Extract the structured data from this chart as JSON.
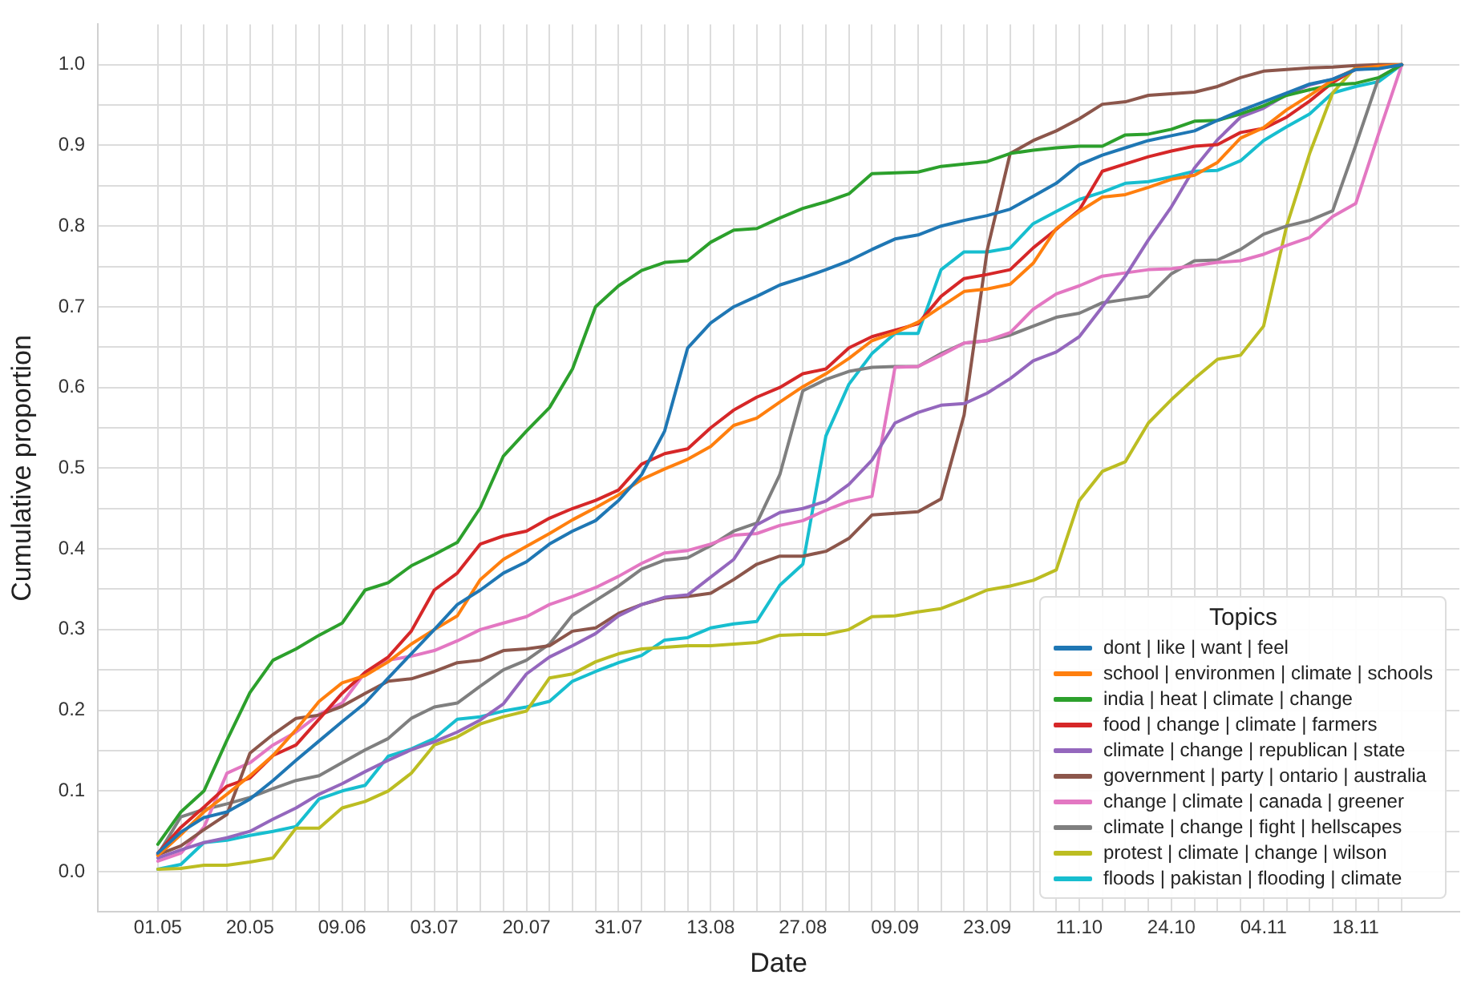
{
  "chart_data": {
    "type": "line",
    "xlabel": "Date",
    "ylabel": "Cumulative proportion",
    "legend_title": "Topics",
    "legend": "bottom right",
    "grid": true,
    "categories": [
      "01.05",
      null,
      null,
      null,
      "20.05",
      null,
      null,
      null,
      "09.06",
      null,
      null,
      null,
      "03.07",
      null,
      null,
      null,
      "20.07",
      null,
      null,
      null,
      "31.07",
      null,
      null,
      null,
      "13.08",
      null,
      null,
      null,
      "27.08",
      null,
      null,
      null,
      "09.09",
      null,
      null,
      null,
      "23.09",
      null,
      null,
      null,
      "11.10",
      null,
      null,
      null,
      "24.10",
      null,
      null,
      null,
      "04.11",
      null,
      null,
      null,
      "18.11",
      null,
      null
    ],
    "ylim": [
      -0.05,
      1.05
    ],
    "yticks": [
      {
        "value": 0,
        "label": "0.0"
      },
      {
        "value": 0.05,
        "label": null
      },
      {
        "value": 0.1,
        "label": "0.1"
      },
      {
        "value": 0.15,
        "label": null
      },
      {
        "value": 0.2,
        "label": "0.2"
      },
      {
        "value": 0.25,
        "label": null
      },
      {
        "value": 0.3,
        "label": "0.3"
      },
      {
        "value": 0.35,
        "label": null
      },
      {
        "value": 0.4,
        "label": "0.4"
      },
      {
        "value": 0.45,
        "label": null
      },
      {
        "value": 0.5,
        "label": "0.5"
      },
      {
        "value": 0.55,
        "label": null
      },
      {
        "value": 0.6,
        "label": "0.6"
      },
      {
        "value": 0.65,
        "label": null
      },
      {
        "value": 0.7,
        "label": "0.7"
      },
      {
        "value": 0.75,
        "label": null
      },
      {
        "value": 0.8,
        "label": "0.8"
      },
      {
        "value": 0.85,
        "label": null
      },
      {
        "value": 0.9,
        "label": "0.9"
      },
      {
        "value": 0.95,
        "label": null
      },
      {
        "value": 1,
        "label": "1.0"
      }
    ],
    "series": [
      {
        "name": "dont | like | want | feel",
        "color": "#1f77b4",
        "values": [
          0.023,
          0.049,
          0.067,
          0.074,
          0.09,
          0.113,
          0.138,
          0.162,
          0.186,
          0.209,
          0.24,
          0.27,
          0.3,
          0.331,
          0.349,
          0.37,
          0.384,
          0.406,
          0.422,
          0.435,
          0.46,
          0.492,
          0.546,
          0.649,
          0.68,
          0.7,
          0.713,
          0.727,
          0.736,
          0.746,
          0.757,
          0.771,
          0.784,
          0.789,
          0.8,
          0.807,
          0.813,
          0.821,
          0.837,
          0.853,
          0.876,
          0.888,
          0.897,
          0.906,
          0.912,
          0.918,
          0.931,
          0.943,
          0.954,
          0.965,
          0.976,
          0.982,
          0.994,
          0.995,
          1.0
        ]
      },
      {
        "name": "school | environmen | climate | schools",
        "color": "#ff7f0e",
        "values": [
          0.02,
          0.046,
          0.074,
          0.096,
          0.119,
          0.144,
          0.176,
          0.211,
          0.234,
          0.243,
          0.26,
          0.282,
          0.3,
          0.317,
          0.362,
          0.387,
          0.403,
          0.419,
          0.436,
          0.451,
          0.467,
          0.486,
          0.499,
          0.511,
          0.527,
          0.553,
          0.562,
          0.582,
          0.601,
          0.617,
          0.636,
          0.658,
          0.668,
          0.681,
          0.7,
          0.719,
          0.722,
          0.728,
          0.754,
          0.797,
          0.818,
          0.836,
          0.839,
          0.848,
          0.858,
          0.863,
          0.879,
          0.909,
          0.922,
          0.944,
          0.962,
          0.981,
          0.995,
          0.998,
          1.0
        ]
      },
      {
        "name": "india | heat | climate | change",
        "color": "#2ca02c",
        "values": [
          0.034,
          0.074,
          0.1,
          0.163,
          0.222,
          0.262,
          0.276,
          0.293,
          0.308,
          0.349,
          0.358,
          0.379,
          0.393,
          0.408,
          0.451,
          0.515,
          0.546,
          0.575,
          0.623,
          0.7,
          0.726,
          0.745,
          0.755,
          0.757,
          0.78,
          0.795,
          0.797,
          0.81,
          0.822,
          0.83,
          0.84,
          0.865,
          0.866,
          0.867,
          0.874,
          0.877,
          0.88,
          0.89,
          0.894,
          0.897,
          0.899,
          0.899,
          0.913,
          0.914,
          0.92,
          0.93,
          0.931,
          0.939,
          0.949,
          0.962,
          0.969,
          0.975,
          0.977,
          0.984,
          1.0
        ]
      },
      {
        "name": "food | change | climate | farmers",
        "color": "#d62728",
        "values": [
          0.023,
          0.055,
          0.08,
          0.106,
          0.116,
          0.144,
          0.157,
          0.189,
          0.221,
          0.247,
          0.266,
          0.298,
          0.349,
          0.37,
          0.406,
          0.416,
          0.422,
          0.438,
          0.45,
          0.46,
          0.473,
          0.505,
          0.518,
          0.524,
          0.55,
          0.572,
          0.588,
          0.6,
          0.617,
          0.623,
          0.649,
          0.663,
          0.671,
          0.679,
          0.713,
          0.735,
          0.74,
          0.746,
          0.773,
          0.796,
          0.82,
          0.868,
          0.877,
          0.886,
          0.893,
          0.899,
          0.901,
          0.916,
          0.921,
          0.935,
          0.955,
          0.978,
          0.995,
          0.998,
          1.0
        ]
      },
      {
        "name": "climate | change | republican | state",
        "color": "#9467bd",
        "values": [
          0.017,
          0.027,
          0.036,
          0.042,
          0.05,
          0.065,
          0.079,
          0.096,
          0.109,
          0.124,
          0.138,
          0.151,
          0.161,
          0.173,
          0.188,
          0.208,
          0.245,
          0.266,
          0.28,
          0.295,
          0.317,
          0.331,
          0.34,
          0.343,
          0.365,
          0.387,
          0.43,
          0.445,
          0.45,
          0.459,
          0.48,
          0.51,
          0.556,
          0.569,
          0.578,
          0.58,
          0.593,
          0.611,
          0.633,
          0.644,
          0.663,
          0.7,
          0.738,
          0.783,
          0.824,
          0.872,
          0.907,
          0.935,
          0.946,
          0.963,
          0.975,
          0.982,
          0.994,
          0.996,
          1.0
        ]
      },
      {
        "name": "government | party | ontario | australia",
        "color": "#8c564b",
        "values": [
          0.021,
          0.032,
          0.052,
          0.071,
          0.147,
          0.17,
          0.19,
          0.194,
          0.205,
          0.221,
          0.236,
          0.239,
          0.248,
          0.259,
          0.262,
          0.274,
          0.276,
          0.28,
          0.298,
          0.302,
          0.32,
          0.331,
          0.339,
          0.341,
          0.345,
          0.362,
          0.381,
          0.391,
          0.391,
          0.397,
          0.413,
          0.442,
          0.444,
          0.446,
          0.462,
          0.566,
          0.77,
          0.89,
          0.906,
          0.918,
          0.933,
          0.951,
          0.954,
          0.962,
          0.964,
          0.966,
          0.973,
          0.984,
          0.992,
          0.994,
          0.996,
          0.997,
          0.999,
          1.0,
          1.0
        ]
      },
      {
        "name": "change | climate | canada | greener",
        "color": "#e377c2",
        "values": [
          0.013,
          0.023,
          0.055,
          0.122,
          0.135,
          0.157,
          0.173,
          0.195,
          0.209,
          0.247,
          0.262,
          0.267,
          0.274,
          0.286,
          0.3,
          0.308,
          0.316,
          0.331,
          0.341,
          0.352,
          0.366,
          0.382,
          0.395,
          0.398,
          0.406,
          0.417,
          0.419,
          0.429,
          0.435,
          0.448,
          0.459,
          0.465,
          0.625,
          0.626,
          0.64,
          0.655,
          0.658,
          0.668,
          0.697,
          0.716,
          0.726,
          0.738,
          0.742,
          0.746,
          0.747,
          0.751,
          0.755,
          0.757,
          0.765,
          0.776,
          0.786,
          0.812,
          0.828,
          0.915,
          1.0
        ]
      },
      {
        "name": "climate | change | fight | hellscapes",
        "color": "#7f7f7f",
        "values": [
          0.021,
          0.068,
          0.077,
          0.084,
          0.092,
          0.103,
          0.113,
          0.119,
          0.135,
          0.151,
          0.165,
          0.19,
          0.204,
          0.209,
          0.23,
          0.25,
          0.262,
          0.282,
          0.318,
          0.336,
          0.354,
          0.375,
          0.386,
          0.389,
          0.404,
          0.422,
          0.432,
          0.492,
          0.596,
          0.61,
          0.62,
          0.625,
          0.626,
          0.626,
          0.642,
          0.655,
          0.658,
          0.665,
          0.676,
          0.687,
          0.692,
          0.705,
          0.709,
          0.713,
          0.741,
          0.757,
          0.758,
          0.771,
          0.79,
          0.8,
          0.807,
          0.819,
          0.9,
          0.984,
          1.0
        ]
      },
      {
        "name": "protest | climate | change | wilson",
        "color": "#bcbd22",
        "values": [
          0.003,
          0.004,
          0.008,
          0.008,
          0.012,
          0.017,
          0.054,
          0.054,
          0.079,
          0.087,
          0.1,
          0.122,
          0.157,
          0.167,
          0.183,
          0.192,
          0.199,
          0.24,
          0.245,
          0.26,
          0.27,
          0.276,
          0.278,
          0.28,
          0.28,
          0.282,
          0.284,
          0.293,
          0.294,
          0.294,
          0.3,
          0.316,
          0.317,
          0.322,
          0.326,
          0.337,
          0.349,
          0.354,
          0.361,
          0.374,
          0.46,
          0.496,
          0.508,
          0.556,
          0.585,
          0.611,
          0.635,
          0.64,
          0.676,
          0.8,
          0.89,
          0.965,
          0.997,
          1.0,
          1.0
        ]
      },
      {
        "name": "floods | pakistan | flooding | climate",
        "color": "#17becf",
        "values": [
          0.003,
          0.009,
          0.036,
          0.039,
          0.045,
          0.05,
          0.056,
          0.09,
          0.1,
          0.107,
          0.143,
          0.152,
          0.165,
          0.189,
          0.192,
          0.199,
          0.204,
          0.211,
          0.236,
          0.248,
          0.259,
          0.268,
          0.287,
          0.29,
          0.302,
          0.307,
          0.31,
          0.355,
          0.381,
          0.54,
          0.604,
          0.642,
          0.667,
          0.667,
          0.746,
          0.768,
          0.768,
          0.773,
          0.803,
          0.818,
          0.833,
          0.842,
          0.853,
          0.855,
          0.861,
          0.868,
          0.869,
          0.881,
          0.906,
          0.923,
          0.939,
          0.965,
          0.973,
          0.979,
          1.0
        ]
      }
    ]
  }
}
